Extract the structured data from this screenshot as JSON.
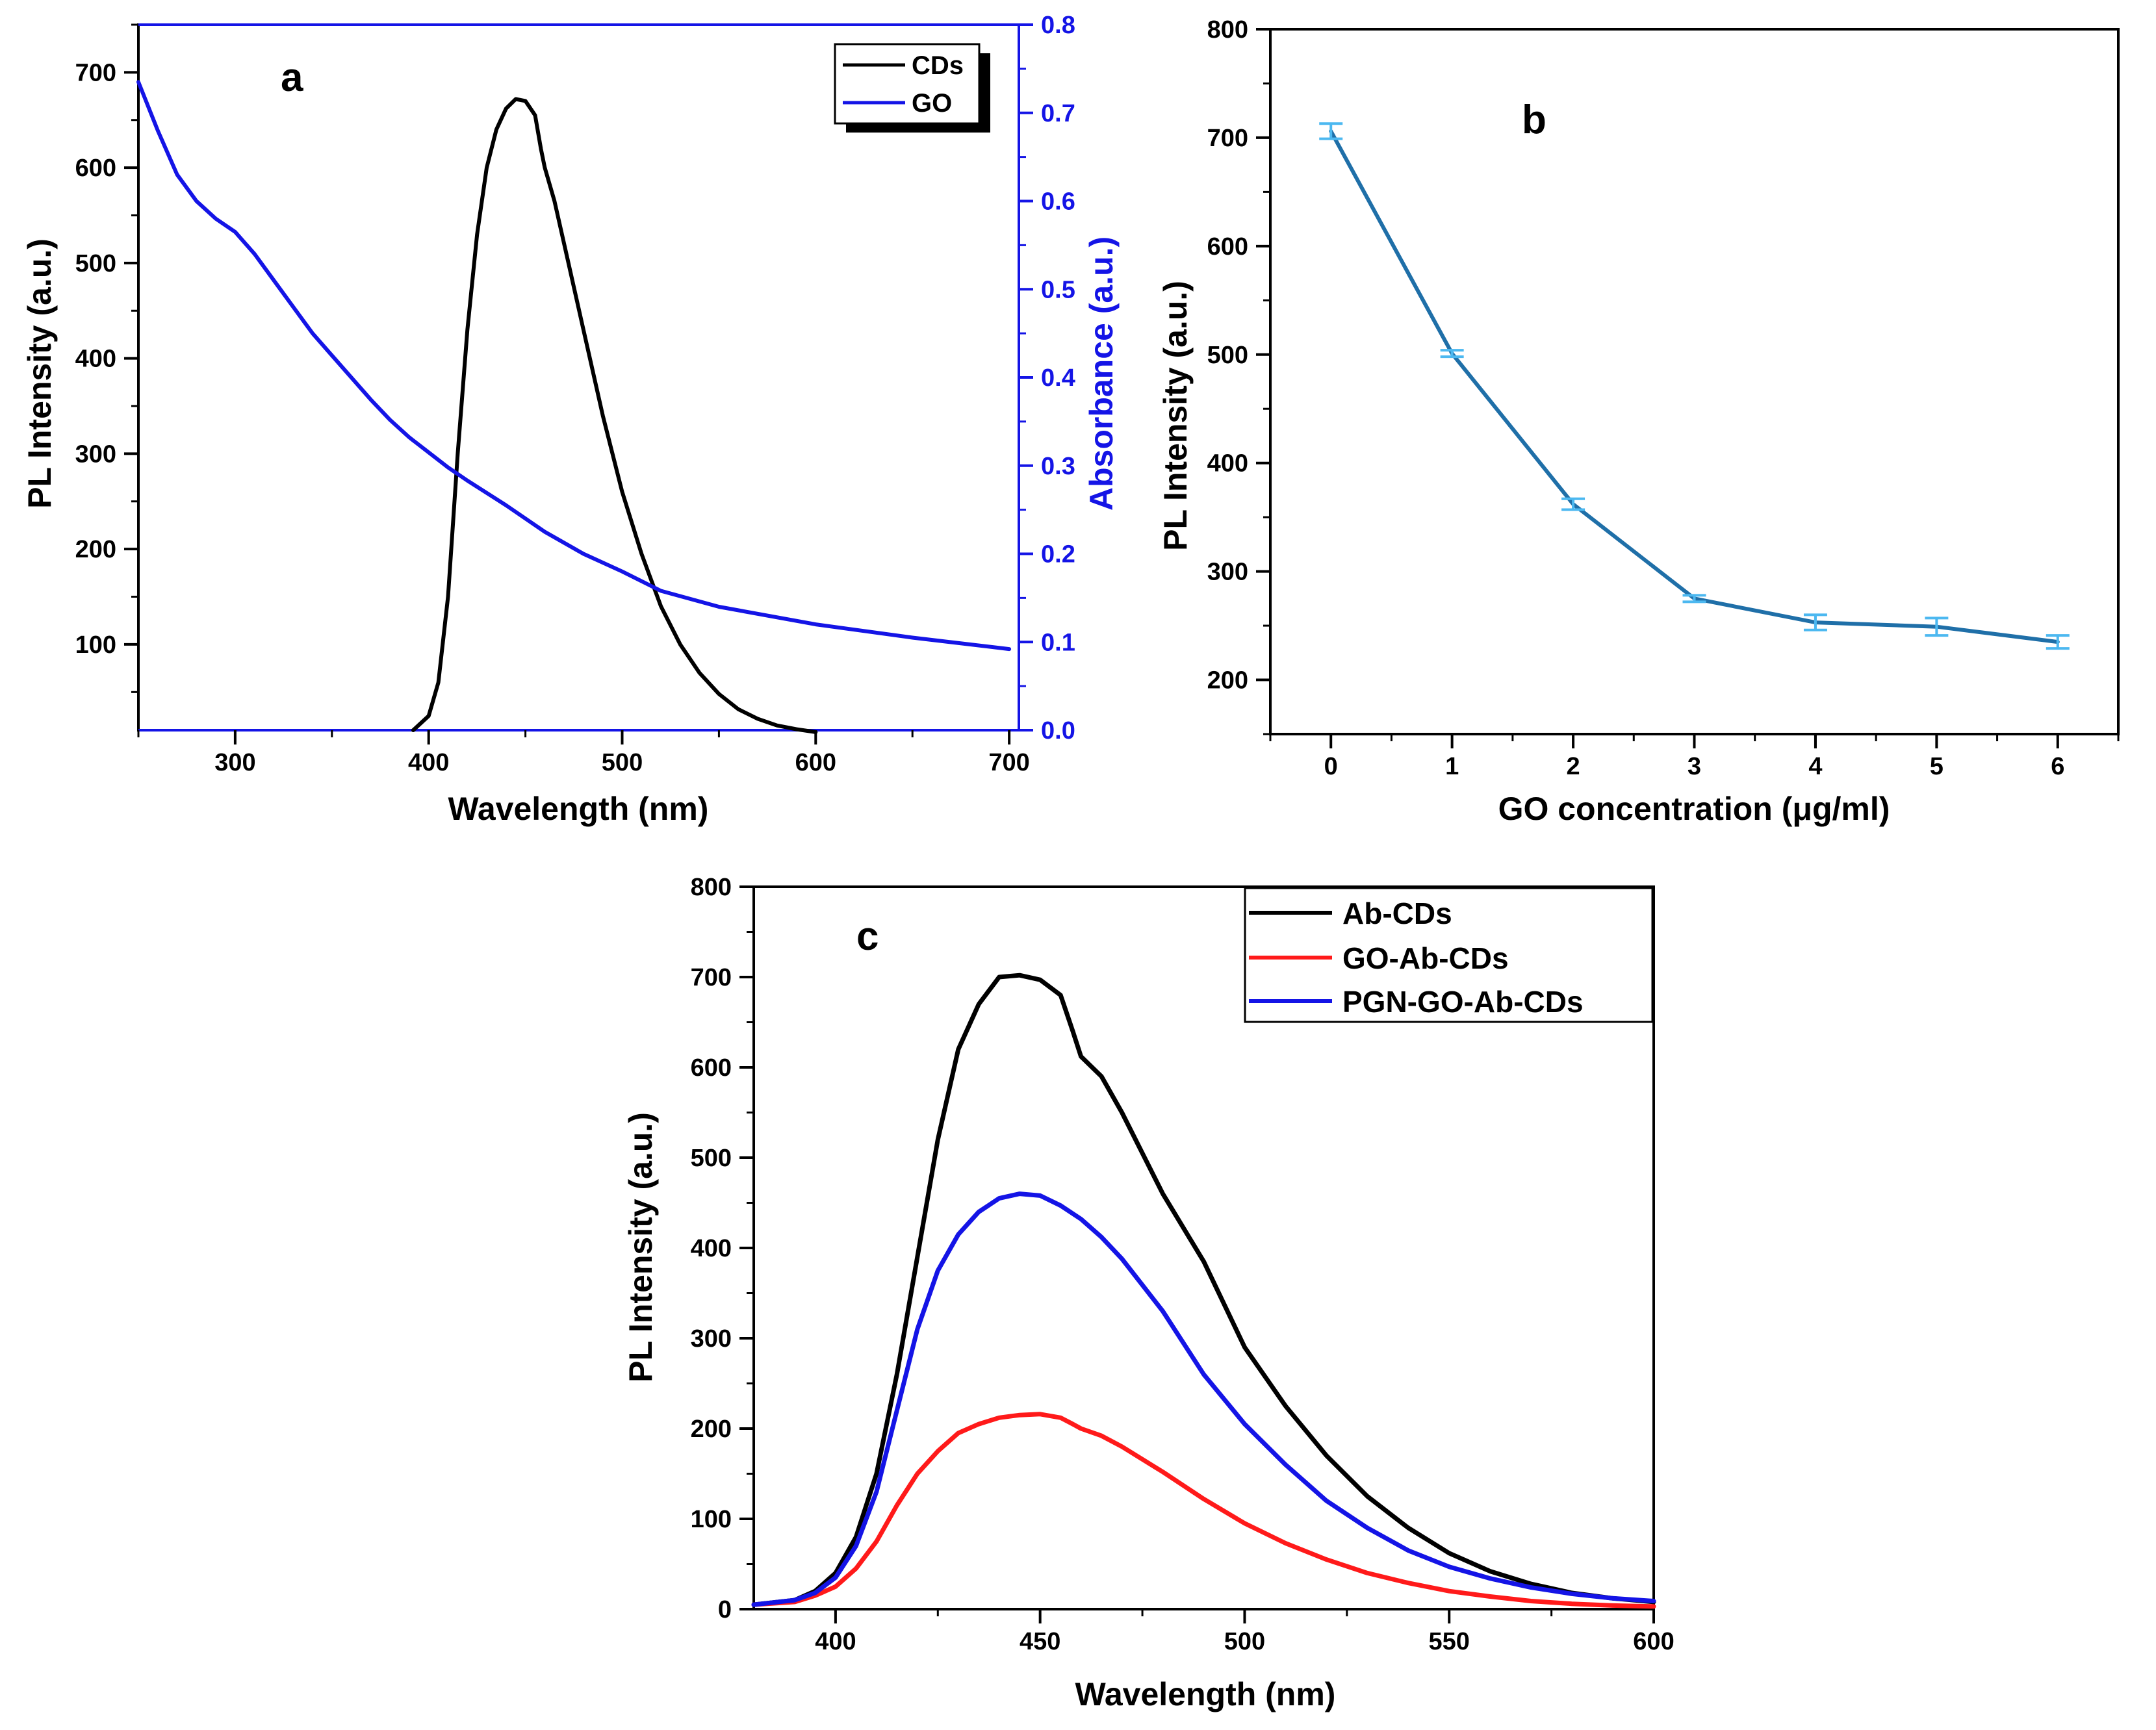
{
  "colors": {
    "black": "#000000",
    "blue": "#1414e6",
    "red": "#ff1a1a",
    "teal_line": "#1f6fa8",
    "errorbar": "#4cb8f0"
  },
  "chart_data": [
    {
      "id": "a",
      "type": "line",
      "panel_label": "a",
      "xlabel": "Wavelength (nm)",
      "ylabel": "PL Intensity (a.u.)",
      "ylabel_right": "Absorbance (a.u.)",
      "xlim": [
        250,
        705
      ],
      "ylim": [
        10,
        750
      ],
      "ylim_right": [
        0,
        0.8
      ],
      "x_ticks": [
        300,
        400,
        500,
        600,
        700
      ],
      "y_ticks": [
        100,
        200,
        300,
        400,
        500,
        600,
        700
      ],
      "y_ticks_right": [
        "0.0",
        "0.1",
        "0.2",
        "0.3",
        "0.4",
        "0.5",
        "0.6",
        "0.7",
        "0.8"
      ],
      "legend": [
        "CDs",
        "GO"
      ],
      "legend_position": "top-right",
      "series": [
        {
          "name": "CDs",
          "axis": "left",
          "color": "#000000",
          "x": [
            392,
            400,
            405,
            410,
            415,
            420,
            425,
            430,
            435,
            440,
            445,
            450,
            455,
            458,
            460,
            465,
            470,
            480,
            490,
            500,
            510,
            520,
            530,
            540,
            550,
            560,
            570,
            580,
            590,
            600
          ],
          "y": [
            10,
            25,
            60,
            150,
            300,
            430,
            530,
            600,
            640,
            662,
            672,
            670,
            655,
            620,
            600,
            565,
            520,
            430,
            340,
            260,
            195,
            140,
            100,
            70,
            48,
            32,
            22,
            15,
            11,
            8
          ]
        },
        {
          "name": "GO",
          "axis": "right",
          "color": "#1414e6",
          "x": [
            250,
            260,
            270,
            280,
            290,
            300,
            310,
            320,
            330,
            340,
            350,
            360,
            370,
            380,
            390,
            400,
            410,
            420,
            440,
            460,
            480,
            500,
            520,
            550,
            600,
            650,
            700
          ],
          "y": [
            0.735,
            0.68,
            0.63,
            0.6,
            0.58,
            0.565,
            0.54,
            0.51,
            0.48,
            0.45,
            0.425,
            0.4,
            0.375,
            0.352,
            0.332,
            0.315,
            0.298,
            0.283,
            0.255,
            0.225,
            0.2,
            0.18,
            0.158,
            0.14,
            0.12,
            0.105,
            0.092
          ]
        }
      ]
    },
    {
      "id": "b",
      "type": "line",
      "panel_label": "b",
      "xlabel": "GO concentration (μg/ml)",
      "ylabel": "PL Intensity (a.u.)",
      "xlim": [
        -0.5,
        6.5
      ],
      "ylim": [
        150,
        800
      ],
      "x_ticks": [
        0,
        1,
        2,
        3,
        4,
        5,
        6
      ],
      "y_ticks": [
        200,
        300,
        400,
        500,
        600,
        700,
        800
      ],
      "series": [
        {
          "name": "PL Intensity",
          "color": "#1f6fa8",
          "x": [
            0,
            1,
            2,
            3,
            4,
            5,
            6
          ],
          "y": [
            706,
            501,
            362,
            275,
            253,
            249,
            235
          ],
          "error": [
            7,
            3,
            5,
            3,
            7,
            8,
            6
          ]
        }
      ]
    },
    {
      "id": "c",
      "type": "line",
      "panel_label": "c",
      "xlabel": "Wavelength (nm)",
      "ylabel": "PL Intensity (a.u.)",
      "xlim": [
        380,
        600
      ],
      "ylim": [
        0,
        800
      ],
      "x_ticks": [
        400,
        450,
        500,
        550,
        600
      ],
      "y_ticks": [
        0,
        100,
        200,
        300,
        400,
        500,
        600,
        700,
        800
      ],
      "legend": [
        "Ab-CDs",
        "GO-Ab-CDs",
        "PGN-GO-Ab-CDs"
      ],
      "legend_position": "top-right",
      "series": [
        {
          "name": "Ab-CDs",
          "color": "#000000",
          "x": [
            380,
            390,
            395,
            400,
            405,
            410,
            415,
            420,
            425,
            430,
            435,
            440,
            445,
            450,
            455,
            458,
            460,
            465,
            470,
            480,
            490,
            500,
            510,
            520,
            530,
            540,
            550,
            560,
            570,
            580,
            590,
            600
          ],
          "y": [
            5,
            10,
            20,
            40,
            80,
            150,
            260,
            390,
            520,
            620,
            670,
            700,
            702,
            697,
            680,
            640,
            612,
            590,
            550,
            460,
            385,
            290,
            225,
            170,
            125,
            90,
            62,
            42,
            28,
            18,
            12,
            8
          ]
        },
        {
          "name": "GO-Ab-CDs",
          "color": "#ff1a1a",
          "x": [
            380,
            390,
            395,
            400,
            405,
            410,
            415,
            420,
            425,
            430,
            435,
            440,
            445,
            450,
            455,
            458,
            460,
            465,
            470,
            480,
            490,
            500,
            510,
            520,
            530,
            540,
            550,
            560,
            570,
            580,
            590,
            600
          ],
          "y": [
            5,
            8,
            15,
            25,
            45,
            75,
            115,
            150,
            175,
            195,
            205,
            212,
            215,
            216,
            212,
            205,
            200,
            192,
            180,
            152,
            122,
            95,
            73,
            55,
            40,
            29,
            20,
            14,
            9,
            6,
            4,
            3
          ]
        },
        {
          "name": "PGN-GO-Ab-CDs",
          "color": "#1414e6",
          "x": [
            380,
            390,
            395,
            400,
            405,
            410,
            415,
            420,
            425,
            430,
            435,
            440,
            445,
            450,
            455,
            460,
            465,
            470,
            480,
            490,
            500,
            510,
            520,
            530,
            540,
            550,
            560,
            570,
            580,
            590,
            600
          ],
          "y": [
            5,
            10,
            18,
            35,
            70,
            130,
            220,
            310,
            375,
            415,
            440,
            455,
            460,
            458,
            447,
            432,
            412,
            388,
            330,
            260,
            205,
            160,
            120,
            90,
            65,
            47,
            34,
            24,
            17,
            12,
            9
          ]
        }
      ]
    }
  ]
}
